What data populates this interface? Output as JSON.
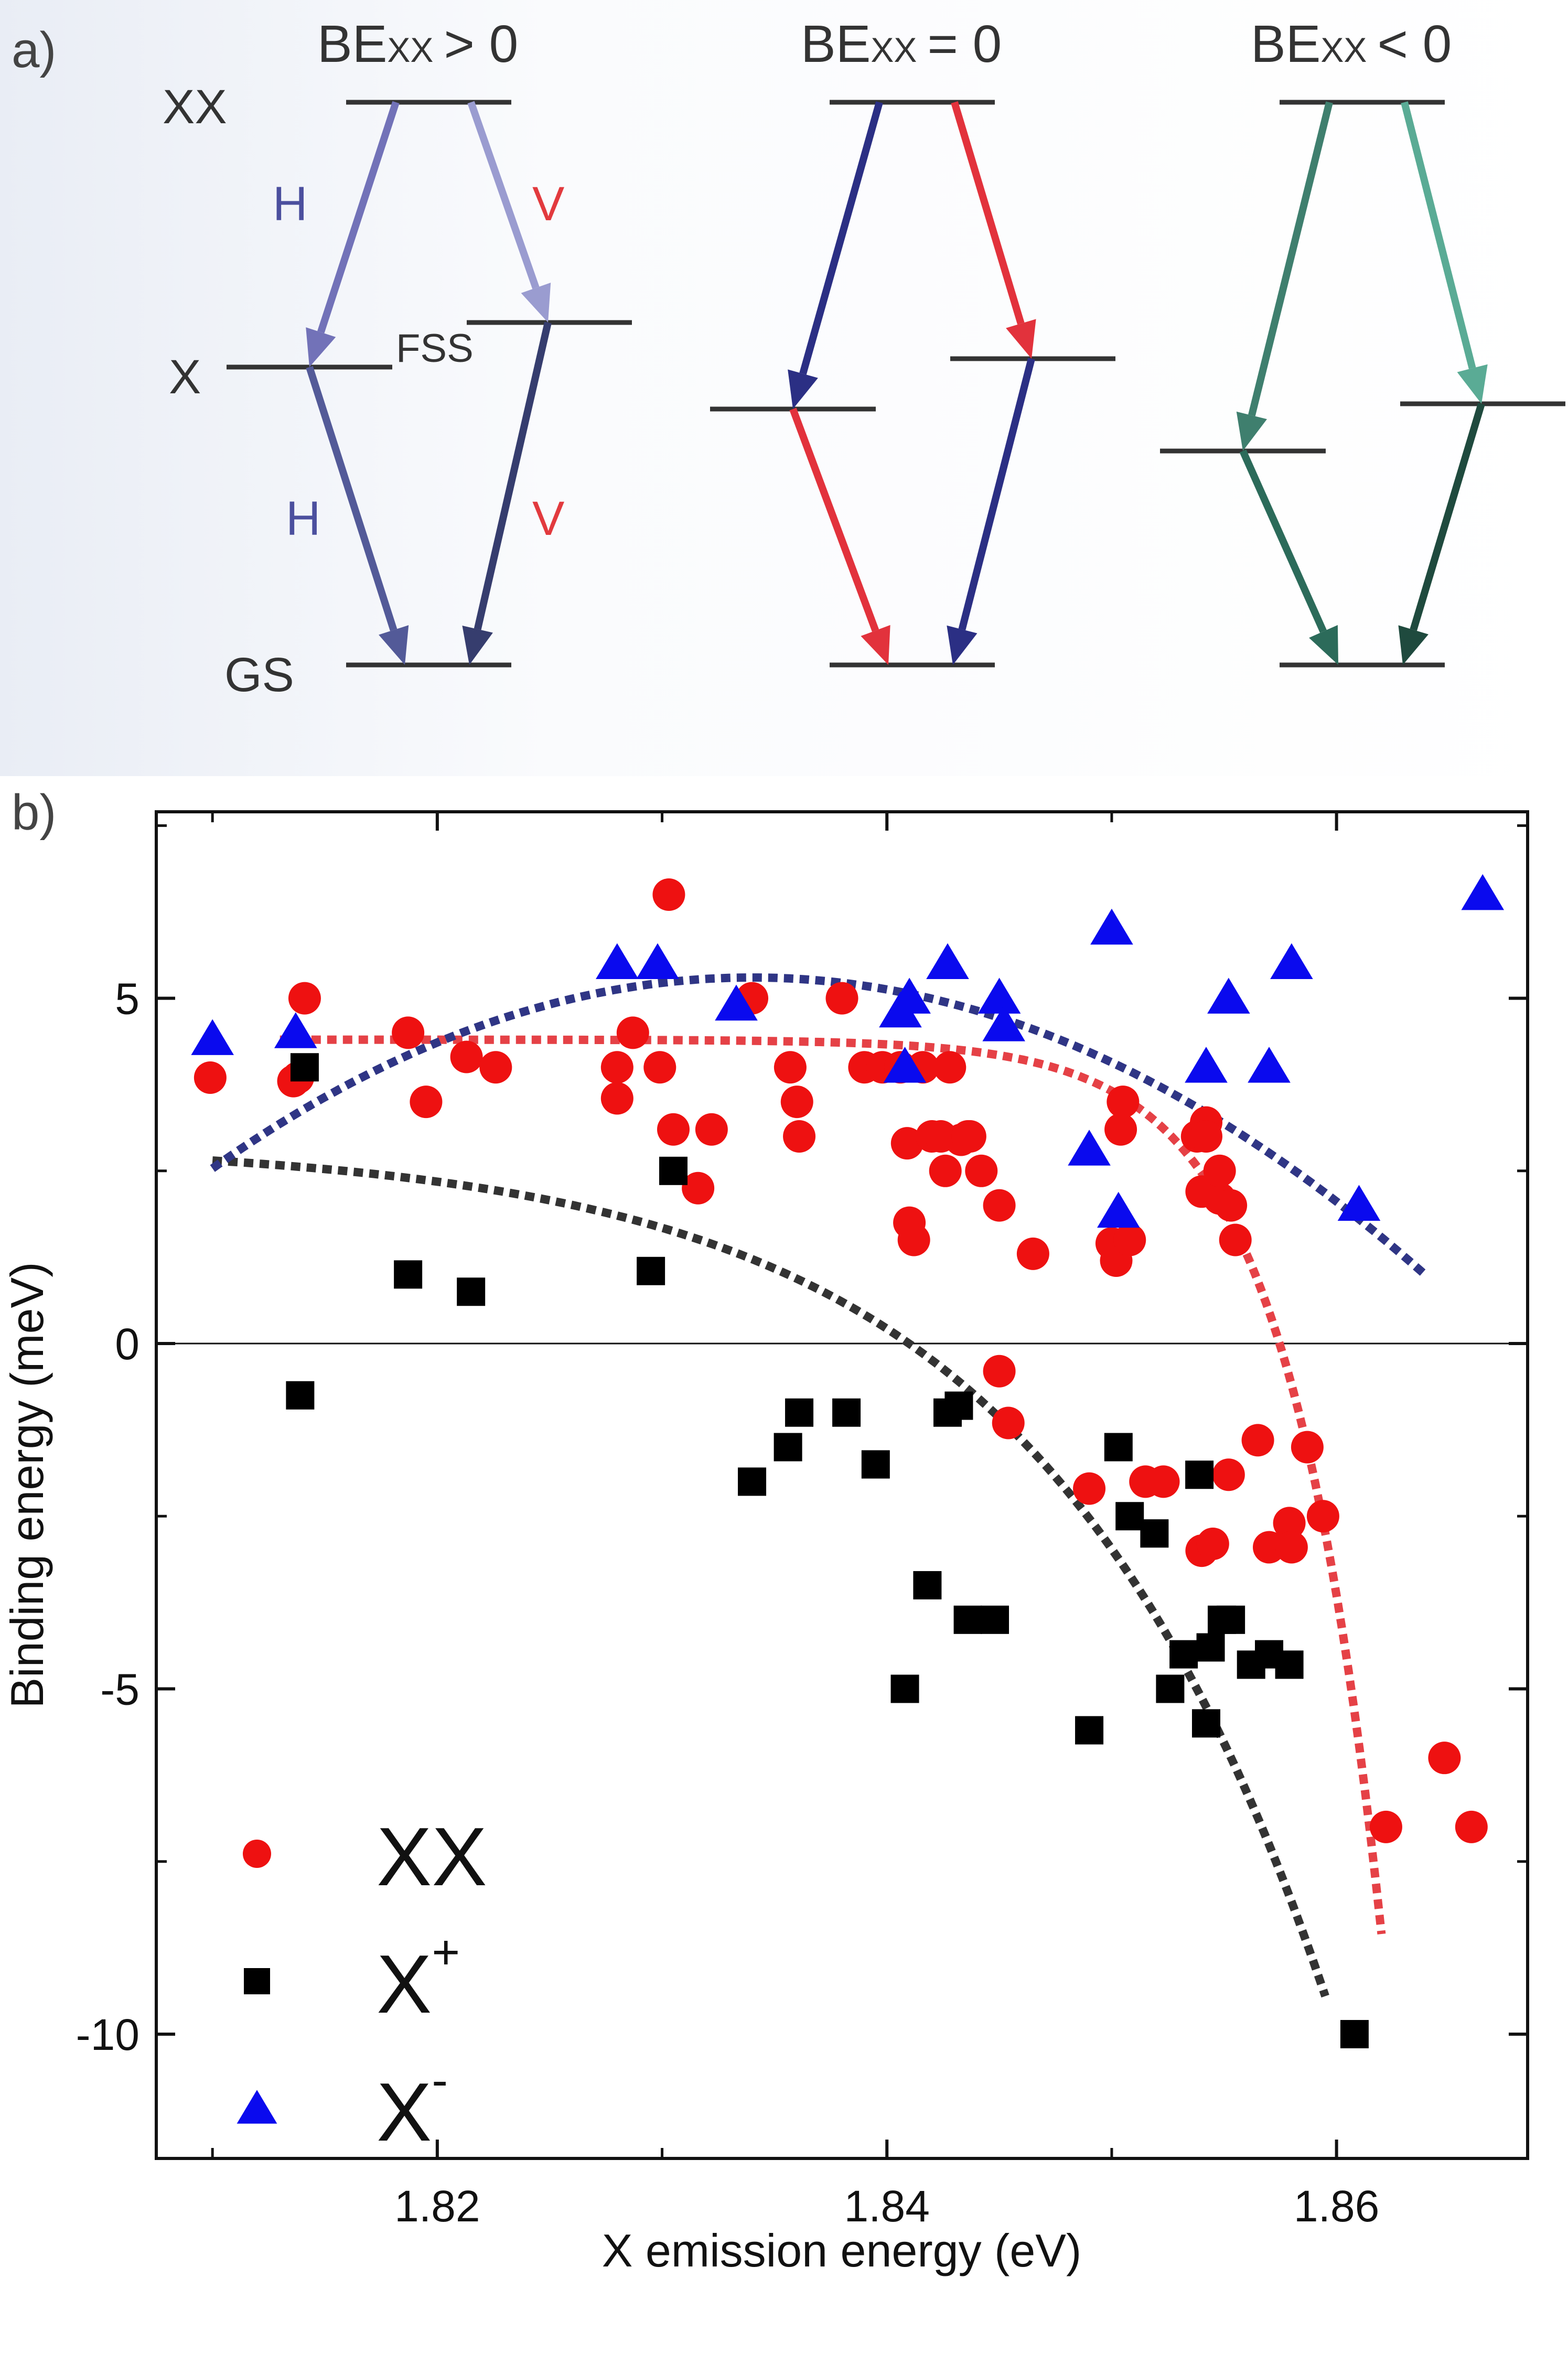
{
  "panel_a": {
    "label": "a)",
    "level_labels": {
      "xx": "XX",
      "x": "X",
      "gs": "GS",
      "fss": "FSS"
    },
    "columns": [
      {
        "title_main": "BE",
        "title_sub": "XX",
        "title_rel": "> 0",
        "pol_labels": [
          "H",
          "V",
          "H",
          "V"
        ],
        "colors": {
          "h_upper": "#7272b8",
          "v_upper": "#9a9cd0",
          "h_lower": "#535a98",
          "v_lower": "#363d6e",
          "label_h": "#4b4f9e",
          "label_v": "#e23a3e"
        }
      },
      {
        "title_main": "BE",
        "title_sub": "XX",
        "title_rel": "= 0",
        "colors": {
          "h_upper": "#2b2f84",
          "v_upper": "#e2323c",
          "h_lower": "#e2323c",
          "v_lower": "#2b2f84"
        }
      },
      {
        "title_main": "BE",
        "title_sub": "XX",
        "title_rel": "< 0",
        "colors": {
          "h_upper": "#3f7f6e",
          "v_upper": "#5aab95",
          "h_lower": "#2c6b5a",
          "v_lower": "#1f4a3e"
        }
      }
    ]
  },
  "panel_b": {
    "label": "b)"
  },
  "chart_data": {
    "type": "scatter",
    "xlabel": "X emission energy (eV)",
    "ylabel": "Binding energy (meV)",
    "xlim": [
      1.8075,
      1.8685
    ],
    "ylim": [
      -11.8,
      7.7
    ],
    "xticks": [
      1.82,
      1.84,
      1.86
    ],
    "xtick_labels": [
      "1.82",
      "1.84",
      "1.86"
    ],
    "yticks": [
      5,
      0,
      -5,
      -10
    ],
    "ytick_labels": [
      "5",
      "0",
      "-5",
      "-10"
    ],
    "zero_line": true,
    "legend_position": "bottom-left",
    "series": [
      {
        "name": "XX",
        "legend_text": "XX",
        "legend_sup": "",
        "marker": "circle",
        "color": "#ee1111",
        "x": [
          1.8099,
          1.8136,
          1.8138,
          1.8141,
          1.8187,
          1.8195,
          1.8213,
          1.8226,
          1.828,
          1.828,
          1.8287,
          1.8299,
          1.8303,
          1.8305,
          1.8316,
          1.8322,
          1.834,
          1.8357,
          1.836,
          1.8361,
          1.838,
          1.839,
          1.8398,
          1.8406,
          1.8409,
          1.841,
          1.8412,
          1.8416,
          1.842,
          1.8424,
          1.8426,
          1.8428,
          1.8433,
          1.8436,
          1.8437,
          1.8442,
          1.845,
          1.845,
          1.8454,
          1.8465,
          1.85,
          1.8502,
          1.8504,
          1.8505,
          1.8508,
          1.8515,
          1.8523,
          1.8538,
          1.854,
          1.8542,
          1.8542,
          1.8548,
          1.8548,
          1.8553,
          1.8555,
          1.849,
          1.854,
          1.8545,
          1.8552,
          1.8565,
          1.857,
          1.8579,
          1.858,
          1.8587,
          1.8594,
          1.8622,
          1.8648,
          1.866
        ],
        "y": [
          3.85,
          3.8,
          3.85,
          5.0,
          4.5,
          3.5,
          4.15,
          4.0,
          4.0,
          3.55,
          4.5,
          4.0,
          6.5,
          3.1,
          2.25,
          3.1,
          5.0,
          4.0,
          3.5,
          3.0,
          5.0,
          4.0,
          4.0,
          4.0,
          2.9,
          1.75,
          1.5,
          4.0,
          3.0,
          3.0,
          2.5,
          4.0,
          2.95,
          3.0,
          3.0,
          2.5,
          2.0,
          -0.4,
          -1.15,
          1.3,
          1.45,
          1.2,
          3.1,
          3.5,
          1.5,
          -2.0,
          -2.0,
          3.0,
          2.2,
          3.2,
          3.0,
          2.1,
          2.5,
          2.0,
          1.5,
          -2.1,
          -3.0,
          -2.9,
          -1.9,
          -1.4,
          -2.95,
          -2.6,
          -2.95,
          -1.5,
          -2.5,
          -7.0,
          -6.0,
          -7.0
        ]
      },
      {
        "name": "X+",
        "legend_text": "X",
        "legend_sup": "+",
        "marker": "square",
        "color": "#000000",
        "x": [
          1.8139,
          1.8141,
          1.8187,
          1.8215,
          1.8295,
          1.8305,
          1.834,
          1.8356,
          1.8361,
          1.8382,
          1.8395,
          1.8408,
          1.8418,
          1.8427,
          1.8432,
          1.8436,
          1.8448,
          1.849,
          1.8503,
          1.8508,
          1.8519,
          1.8526,
          1.8532,
          1.8539,
          1.8542,
          1.8544,
          1.8549,
          1.8553,
          1.8562,
          1.857,
          1.8579,
          1.8608
        ],
        "y": [
          -0.75,
          4.0,
          1.0,
          0.75,
          1.05,
          2.5,
          -2.0,
          -1.5,
          -1.0,
          -1.0,
          -1.75,
          -5.0,
          -3.5,
          -1.0,
          -0.9,
          -4.0,
          -4.0,
          -5.6,
          -1.5,
          -2.5,
          -2.75,
          -5.0,
          -4.5,
          -1.9,
          -5.5,
          -4.4,
          -4.0,
          -4.0,
          -4.65,
          -4.5,
          -4.65,
          -10.0
        ]
      },
      {
        "name": "X-",
        "legend_text": "X",
        "legend_sup": "-",
        "marker": "triangle",
        "color": "#0a0aee",
        "x": [
          1.81,
          1.8137,
          1.828,
          1.8298,
          1.8333,
          1.8406,
          1.8408,
          1.841,
          1.8427,
          1.845,
          1.8452,
          1.849,
          1.85,
          1.8503,
          1.8542,
          1.8552,
          1.857,
          1.858,
          1.861,
          1.8665
        ],
        "y": [
          4.4,
          4.5,
          5.5,
          5.5,
          4.9,
          4.8,
          4.0,
          5.0,
          5.5,
          5.0,
          4.6,
          2.8,
          6.0,
          1.9,
          4.0,
          5.0,
          4.0,
          5.5,
          2.0,
          6.5
        ]
      }
    ],
    "fits": [
      {
        "name": "XX fit",
        "color": "#e54146",
        "x0": 1.813,
        "x1": 1.862,
        "y0": 4.4,
        "k": 11.5,
        "tau": 0.0042,
        "xc": 1.813
      },
      {
        "name": "X+ fit",
        "color": "#333333",
        "x0": 1.81,
        "x1": 1.8595,
        "y0": 2.65,
        "k": 5.55,
        "tau": 0.0128,
        "xc": 1.81
      },
      {
        "name": "X- fit",
        "color": "#2f3585",
        "x0": 1.81,
        "x1": 1.864,
        "yA": 5.3,
        "xv": 1.834,
        "q": 4800
      }
    ]
  }
}
